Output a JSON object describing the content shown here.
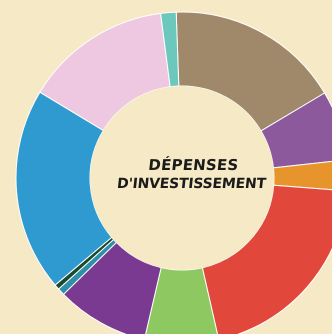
{
  "chart_data": {
    "type": "pie",
    "variant": "donut",
    "title_line1": "DÉPENSES",
    "title_line2": "D'INVESTISSEMENT",
    "slices": [
      {
        "value": 17.0,
        "color": "#a0896a"
      },
      {
        "value": 6.8,
        "color": "#8c5a9c"
      },
      {
        "value": 3.0,
        "color": "#e8942c"
      },
      {
        "value": 20.2,
        "color": "#e2473c"
      },
      {
        "value": 7.2,
        "color": "#8dc860"
      },
      {
        "value": 9.0,
        "color": "#7a3a92"
      },
      {
        "value": 0.7,
        "color": "#2f8ea8"
      },
      {
        "value": 0.5,
        "color": "#184a2e"
      },
      {
        "value": 19.8,
        "color": "#2e9ad0"
      },
      {
        "value": 14.3,
        "color": "#eec8e0"
      },
      {
        "value": 1.5,
        "color": "#6cc8bc"
      }
    ]
  }
}
